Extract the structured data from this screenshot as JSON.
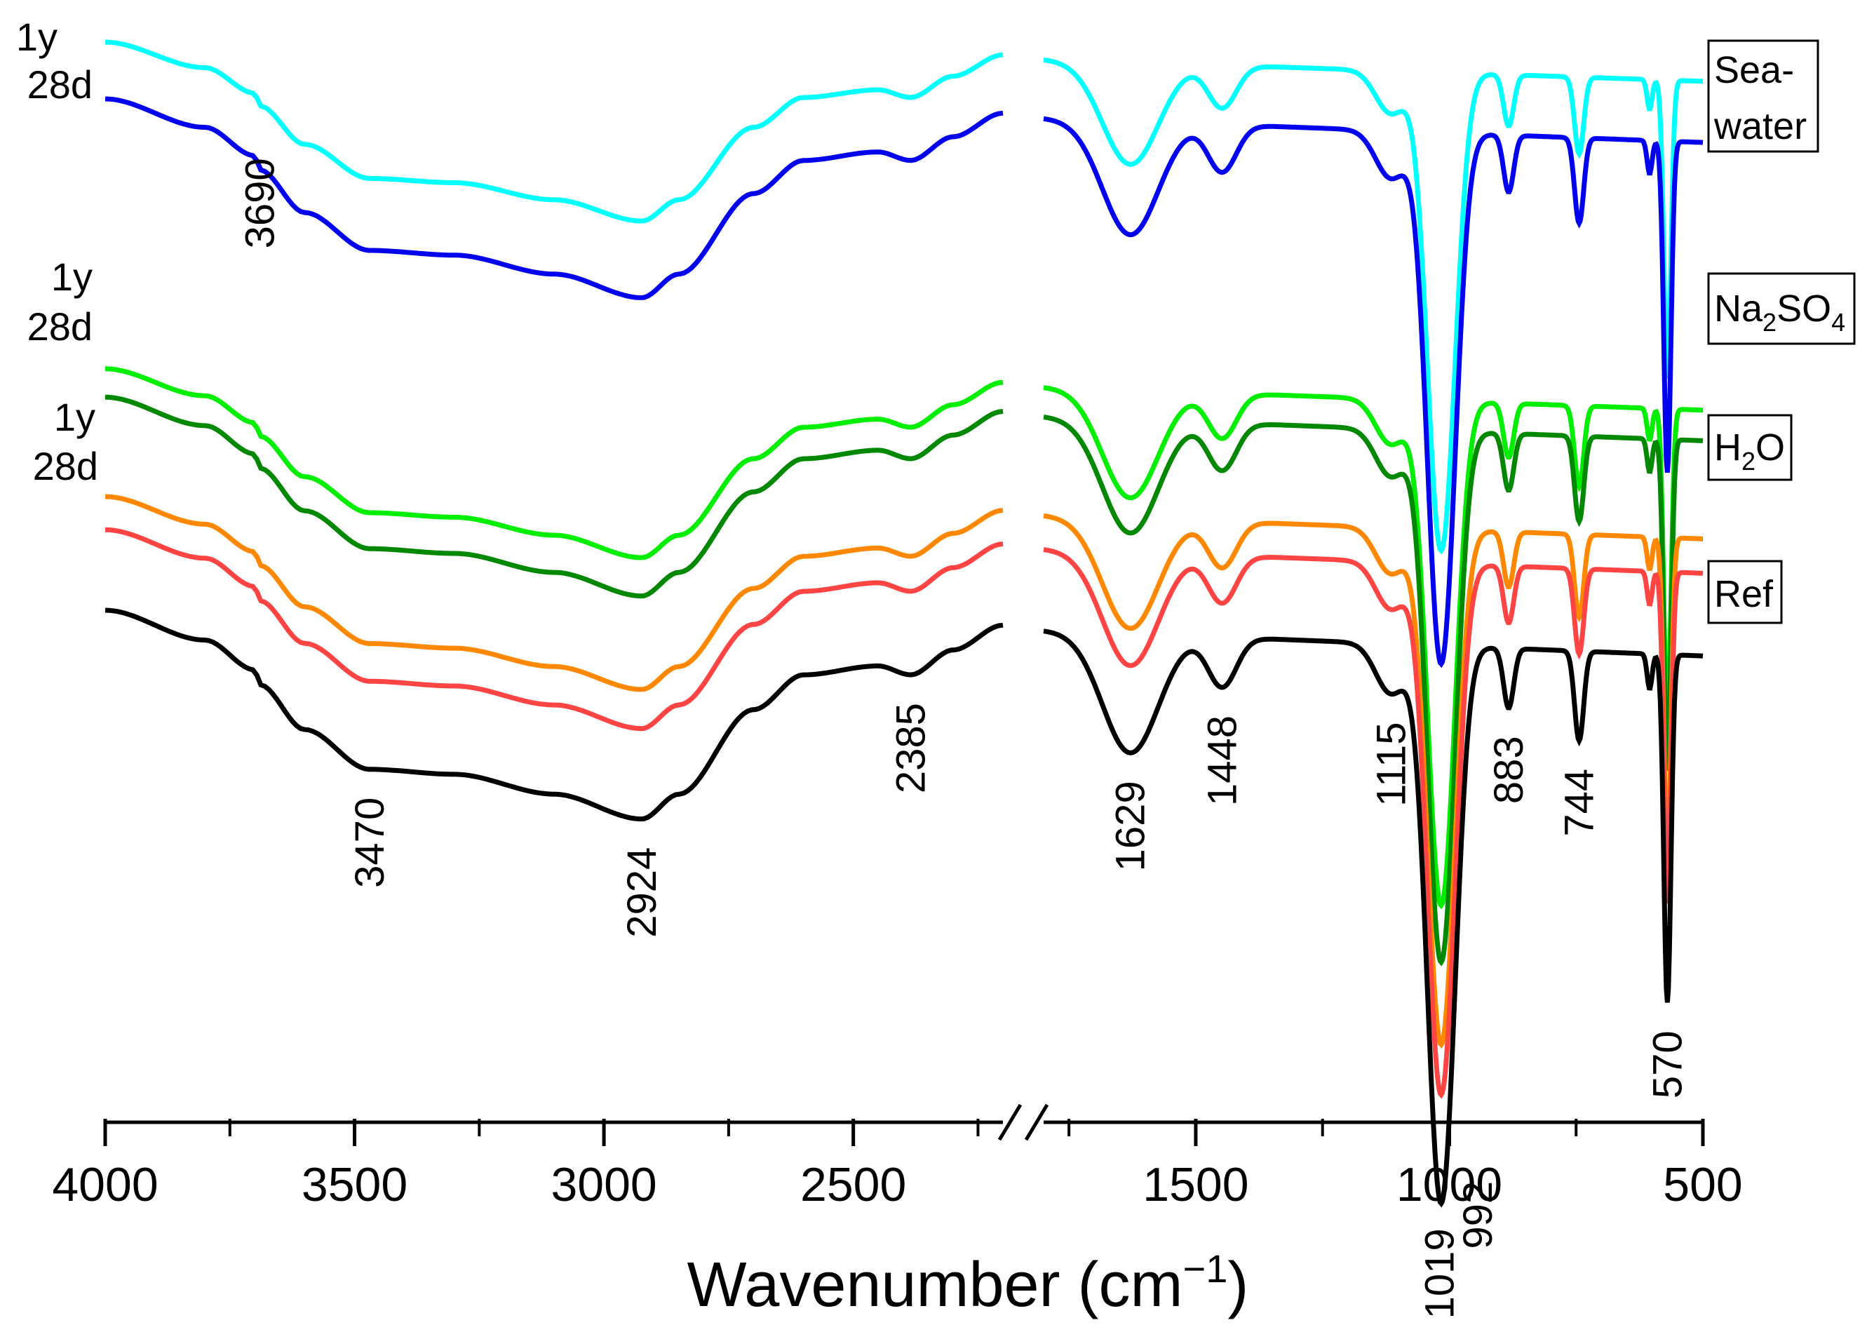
{
  "chart_data": {
    "type": "line",
    "title": "",
    "xlabel": "Wavenumber (cm−1)",
    "xlabel_main": "Wavenumber (cm",
    "xlabel_minus": "−",
    "xlabel_exp": "1",
    "xlabel_close": ")",
    "ylabel": "",
    "x_axis": {
      "reversed": true,
      "broken": true,
      "segment_left": [
        4000,
        2200
      ],
      "segment_right": [
        1800,
        500
      ],
      "major_ticks": [
        4000,
        3500,
        3000,
        2500,
        1500,
        1000,
        500
      ],
      "tick_labels": [
        "4000",
        "3500",
        "3000",
        "2500",
        "1500",
        "1000",
        "500"
      ],
      "minor_ticks": [
        3750,
        3250,
        2750,
        2250,
        1750,
        1250,
        750
      ]
    },
    "y_units": "arbitrary (stacked spectra, transmittance)",
    "series": [
      {
        "name": "Sea-water 1y",
        "color": "#00FFFF",
        "offset": 0.0,
        "peak_scale": 0.9
      },
      {
        "name": "Sea-water 28d",
        "color": "#0000EE",
        "offset": 0.06,
        "peak_scale": 1.0
      },
      {
        "name": "Na2SO4 1y",
        "color": "#00EE00",
        "offset": 0.345,
        "peak_scale": 0.95
      },
      {
        "name": "Na2SO4 28d",
        "color": "#008800",
        "offset": 0.375,
        "peak_scale": 1.0
      },
      {
        "name": "H2O 1y",
        "color": "#FF8800",
        "offset": 0.48,
        "peak_scale": 0.97
      },
      {
        "name": "H2O 28d",
        "color": "#FF4444",
        "offset": 0.515,
        "peak_scale": 1.0
      },
      {
        "name": "Ref",
        "color": "#000000",
        "offset": 0.6,
        "peak_scale": 1.05
      }
    ],
    "band_positions": [
      3690,
      3470,
      2924,
      2385,
      1629,
      1448,
      1115,
      1019,
      992,
      883,
      744,
      570
    ],
    "peak_labels": [
      "3690",
      "3470",
      "2924",
      "2385",
      "1629",
      "1448",
      "1115",
      "1019",
      "992",
      "883",
      "744",
      "570"
    ],
    "age_labels": [
      {
        "group": "Sea-water",
        "top": "1y",
        "bottom": "28d"
      },
      {
        "group": "Na2SO4",
        "top": "1y",
        "bottom": "28d"
      },
      {
        "group": "H2O",
        "top": "1y",
        "bottom": "28d"
      }
    ],
    "legend": [
      {
        "label": "Sea-",
        "label2": "water"
      },
      {
        "label": "Na",
        "sub1": "2",
        "mid": "SO",
        "sub2": "4"
      },
      {
        "label": "H",
        "sub1": "2",
        "mid": "O"
      },
      {
        "label": "Ref"
      }
    ]
  }
}
